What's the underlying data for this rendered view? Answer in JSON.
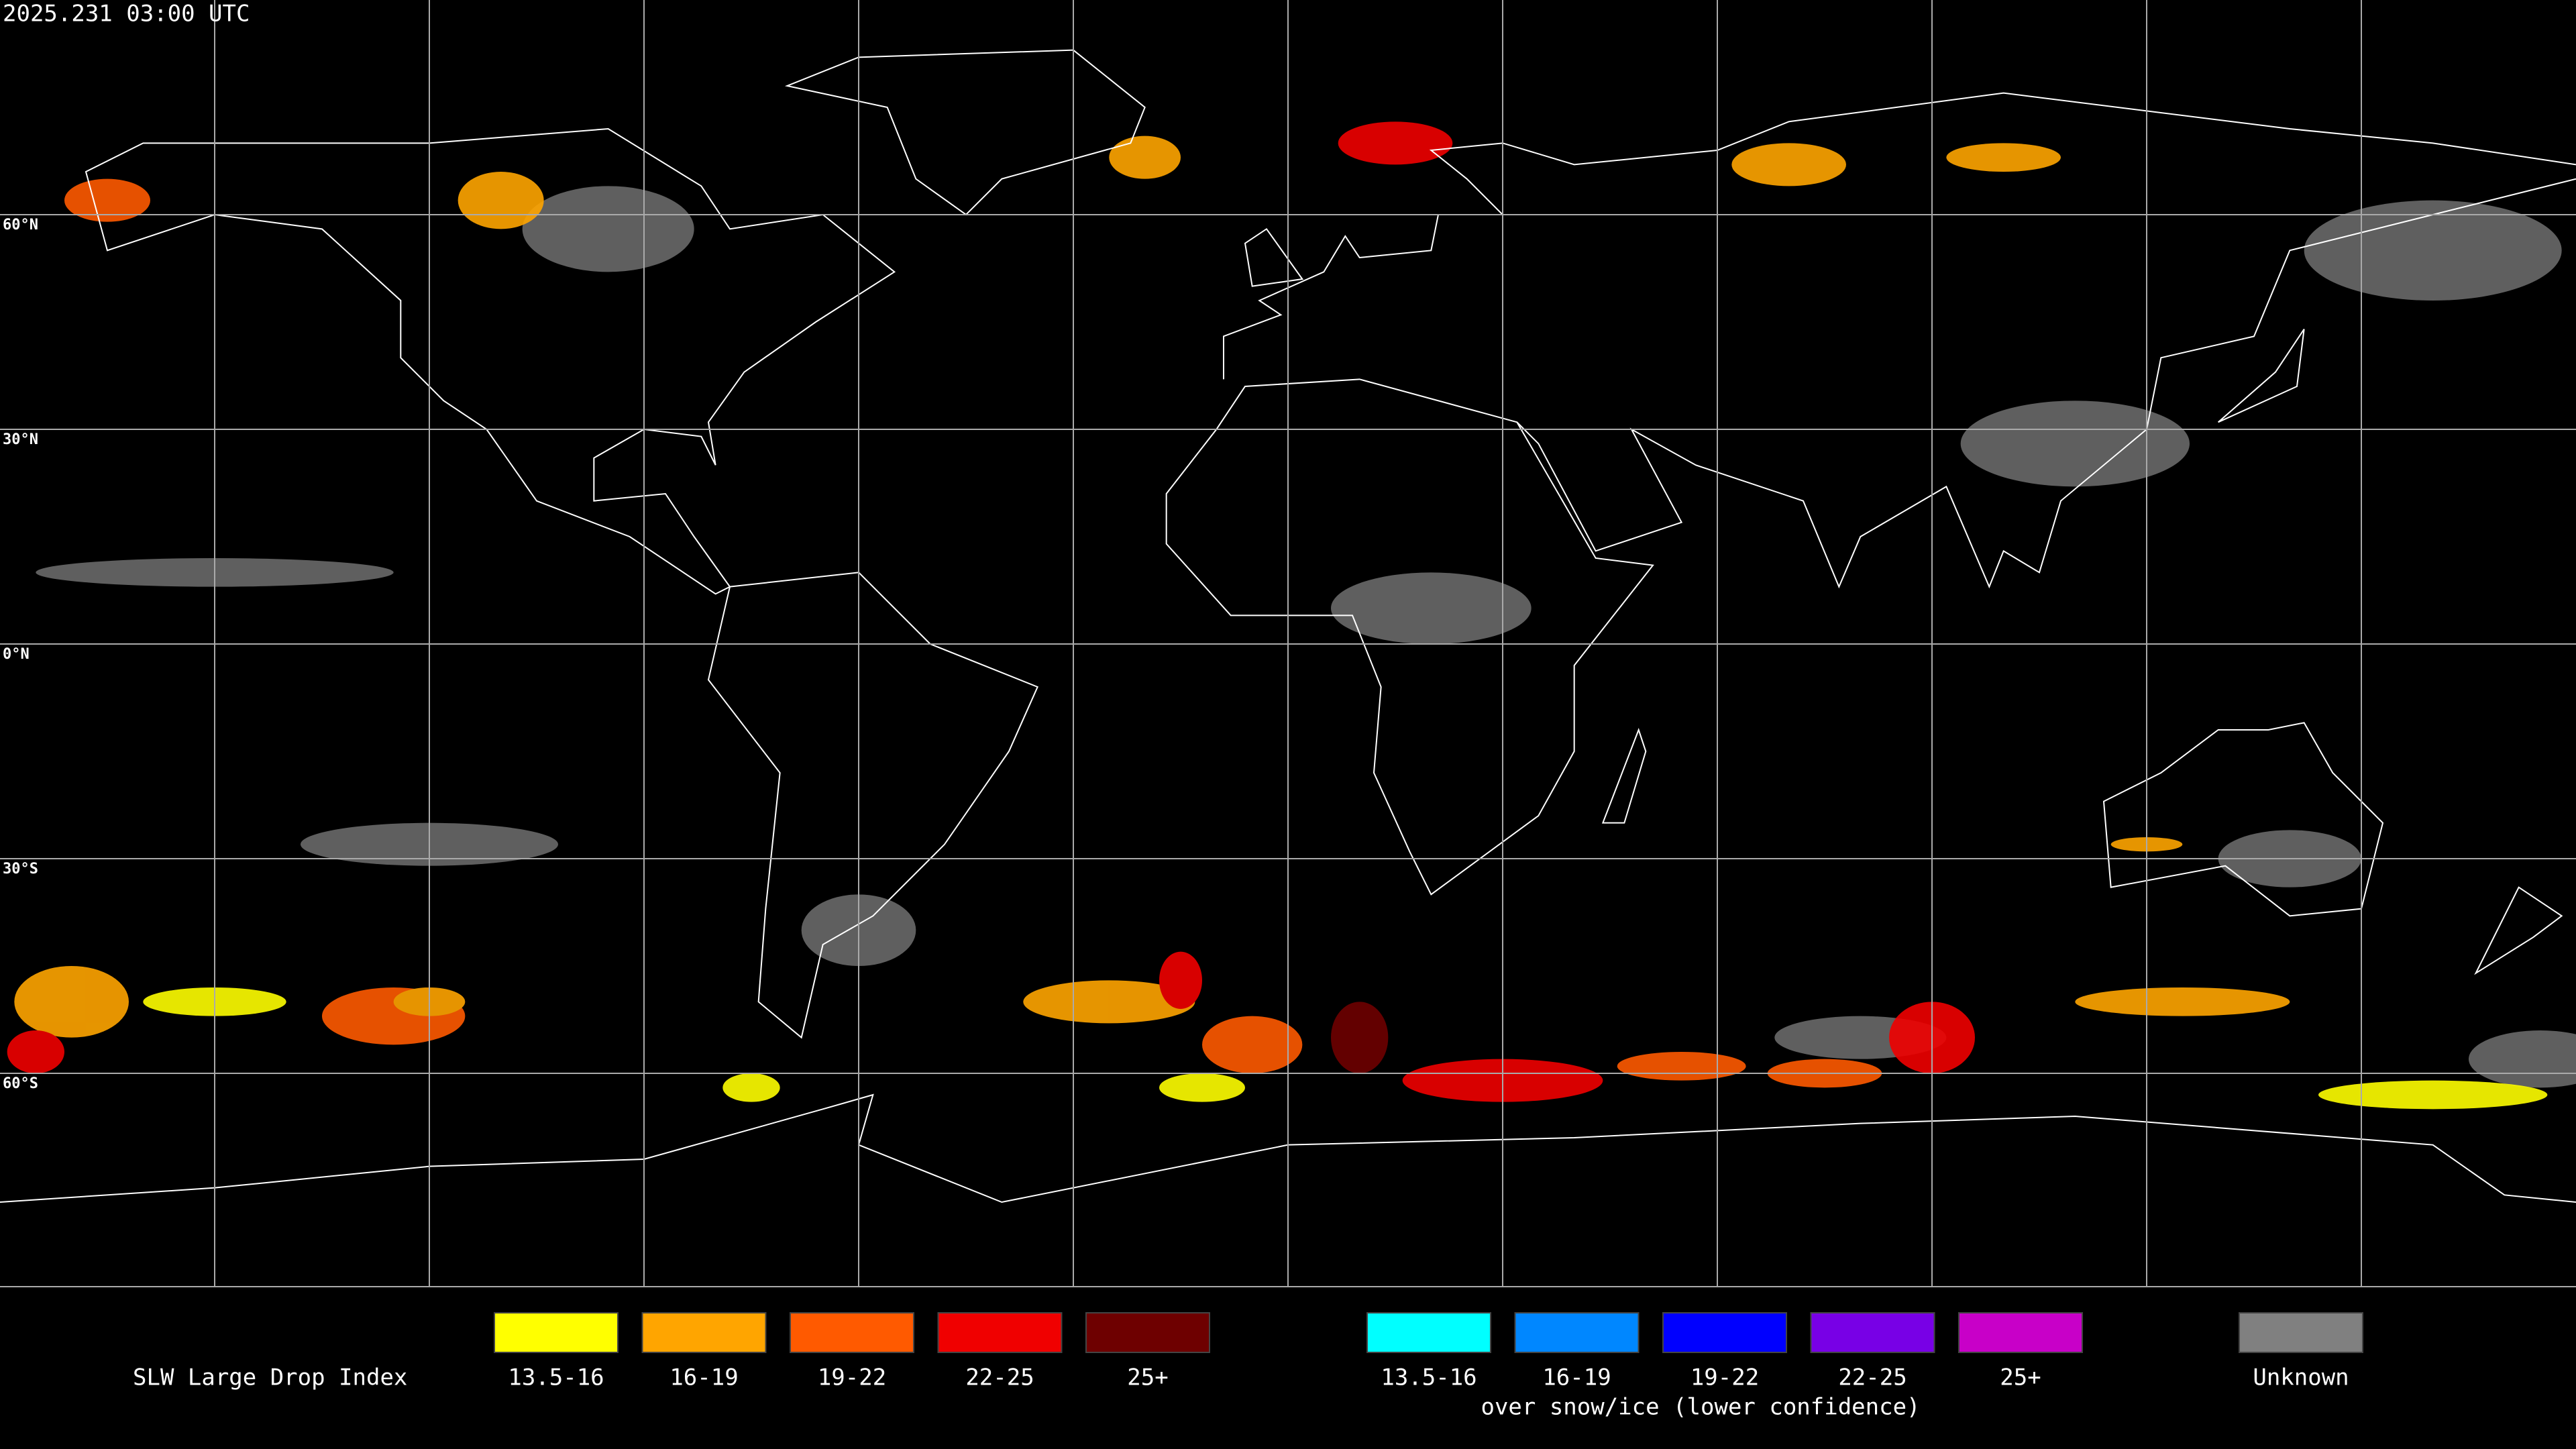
{
  "header": {
    "title": "2025.231 03:00 UTC"
  },
  "latitude_labels": [
    "60°N",
    "30°N",
    "0°N",
    "30°S",
    "60°S"
  ],
  "legend": {
    "title": "SLW Large Drop Index",
    "items": [
      {
        "label": "13.5-16",
        "color": "#ffff00"
      },
      {
        "label": "16-19",
        "color": "#ffa500"
      },
      {
        "label": "19-22",
        "color": "#ff5a00"
      },
      {
        "label": "22-25",
        "color": "#f00000"
      },
      {
        "label": "25+",
        "color": "#6e0000"
      }
    ],
    "snow_items": [
      {
        "label": "13.5-16",
        "color": "#00ffff"
      },
      {
        "label": "16-19",
        "color": "#0087ff"
      },
      {
        "label": "19-22",
        "color": "#0000ff"
      },
      {
        "label": "22-25",
        "color": "#7800e6"
      },
      {
        "label": "25+",
        "color": "#c800c8"
      }
    ],
    "note": "over snow/ice (lower confidence)",
    "unknown": {
      "label": "Unknown",
      "color": "#808080"
    }
  }
}
